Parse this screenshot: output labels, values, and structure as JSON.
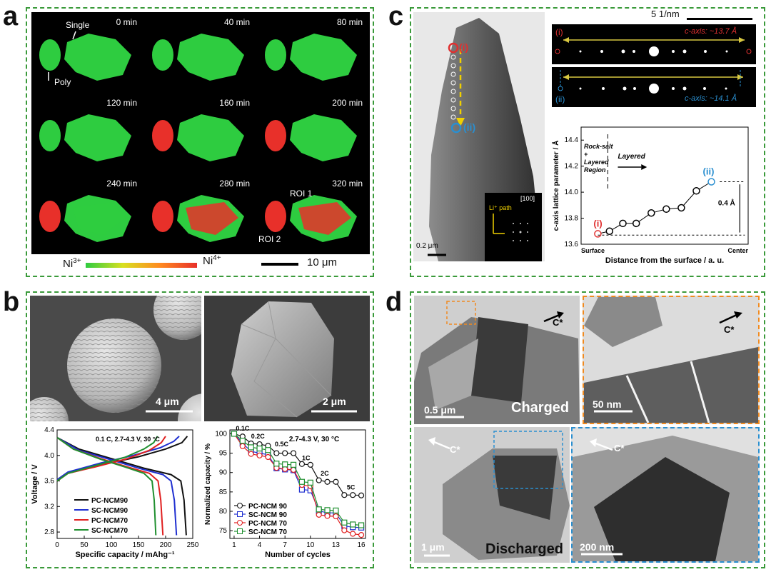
{
  "panels": {
    "a": {
      "letter": "a",
      "times": [
        "0 min",
        "40 min",
        "80 min",
        "120 min",
        "160 min",
        "200 min",
        "240 min",
        "280 min",
        "320 min"
      ],
      "annotations": {
        "single": "Single",
        "poly": "Poly",
        "roi1": "ROI 1",
        "roi2": "ROI 2"
      },
      "colorbar": {
        "left": "Ni",
        "left_sup": "3+",
        "right": "Ni",
        "right_sup": "4+"
      },
      "scalebar": "10 μm",
      "colors": {
        "ni3": "#2ecc40",
        "ni4": "#e8302a",
        "bg": "#000000"
      }
    },
    "b": {
      "letter": "b",
      "sem_scale_left": "4 μm",
      "sem_scale_right": "2 μm"
    },
    "c": {
      "letter": "c",
      "tem_scale": "0.2 μm",
      "markers": {
        "i": "(i)",
        "ii": "(ii)"
      },
      "inset": {
        "path": "Li⁺ path",
        "zone": "[100]"
      },
      "fft_scale": "5 1/nm",
      "fft_rows": [
        {
          "label": "(i)",
          "caxis": "c-axis: ~13.7 Å",
          "color": "#e03030"
        },
        {
          "label": "(ii)",
          "caxis": "c-axis: ~14.1 Å",
          "color": "#2a8fd0"
        }
      ]
    },
    "d": {
      "letter": "d",
      "charged": "Charged",
      "discharged": "Discharged",
      "cstar": "C*",
      "scales": {
        "tl": "0.5 μm",
        "tr": "50 nm",
        "bl": "1 μm",
        "br": "200 nm"
      }
    }
  },
  "chart_data": [
    {
      "type": "line",
      "id": "voltage-profile",
      "title": "0.1 C, 2.7-4.3 V, 30 °C",
      "xlabel": "Specific capacity / mAhg⁻¹",
      "ylabel": "Voltage / V",
      "xlim": [
        0,
        250
      ],
      "ylim": [
        2.7,
        4.4
      ],
      "xticks": [
        0,
        50,
        100,
        150,
        200,
        250
      ],
      "yticks": [
        2.8,
        3.2,
        3.6,
        4.0,
        4.4
      ],
      "series": [
        {
          "name": "PC-NCM90",
          "color": "#111111",
          "charge": [
            [
              0,
              3.6
            ],
            [
              20,
              3.72
            ],
            [
              80,
              3.85
            ],
            [
              150,
              3.98
            ],
            [
              200,
              4.1
            ],
            [
              230,
              4.2
            ],
            [
              240,
              4.3
            ]
          ],
          "discharge": [
            [
              0,
              4.28
            ],
            [
              40,
              4.1
            ],
            [
              100,
              3.95
            ],
            [
              160,
              3.8
            ],
            [
              210,
              3.7
            ],
            [
              228,
              3.6
            ],
            [
              234,
              3.3
            ],
            [
              238,
              2.75
            ]
          ]
        },
        {
          "name": "SC-NCM90",
          "color": "#1f2fd0",
          "charge": [
            [
              0,
              3.62
            ],
            [
              20,
              3.74
            ],
            [
              80,
              3.88
            ],
            [
              140,
              4.0
            ],
            [
              190,
              4.12
            ],
            [
              215,
              4.22
            ],
            [
              225,
              4.3
            ]
          ],
          "discharge": [
            [
              0,
              4.28
            ],
            [
              40,
              4.08
            ],
            [
              100,
              3.93
            ],
            [
              150,
              3.8
            ],
            [
              195,
              3.7
            ],
            [
              210,
              3.6
            ],
            [
              216,
              3.3
            ],
            [
              220,
              2.75
            ]
          ]
        },
        {
          "name": "PC-NCM70",
          "color": "#e02020",
          "charge": [
            [
              0,
              3.6
            ],
            [
              20,
              3.72
            ],
            [
              70,
              3.82
            ],
            [
              130,
              3.95
            ],
            [
              170,
              4.08
            ],
            [
              192,
              4.2
            ],
            [
              200,
              4.3
            ]
          ],
          "discharge": [
            [
              0,
              4.28
            ],
            [
              30,
              4.1
            ],
            [
              80,
              3.95
            ],
            [
              130,
              3.82
            ],
            [
              170,
              3.72
            ],
            [
              186,
              3.6
            ],
            [
              191,
              3.3
            ],
            [
              195,
              2.75
            ]
          ]
        },
        {
          "name": "SC-NCM70",
          "color": "#1f8f2f",
          "charge": [
            [
              0,
              3.6
            ],
            [
              20,
              3.72
            ],
            [
              70,
              3.84
            ],
            [
              125,
              3.97
            ],
            [
              160,
              4.1
            ],
            [
              178,
              4.2
            ],
            [
              185,
              4.3
            ]
          ],
          "discharge": [
            [
              0,
              4.28
            ],
            [
              30,
              4.1
            ],
            [
              80,
              3.94
            ],
            [
              125,
              3.82
            ],
            [
              160,
              3.72
            ],
            [
              175,
              3.6
            ],
            [
              179,
              3.3
            ],
            [
              182,
              2.75
            ]
          ]
        }
      ]
    },
    {
      "type": "line",
      "id": "rate-capability",
      "title": "2.7-4.3 V, 30 °C",
      "xlabel": "Number of cycles",
      "ylabel": "Normalized capacity / %",
      "xlim": [
        0.5,
        16.5
      ],
      "ylim": [
        73,
        101
      ],
      "xticks": [
        1,
        4,
        7,
        10,
        13,
        16
      ],
      "yticks": [
        75,
        80,
        85,
        90,
        95,
        100
      ],
      "rate_labels": [
        {
          "text": "0.1C",
          "x": 1.2,
          "y": 100.8
        },
        {
          "text": "0.2C",
          "x": 3,
          "y": 98.8
        },
        {
          "text": "0.5C",
          "x": 5.8,
          "y": 96.8
        },
        {
          "text": "1C",
          "x": 9,
          "y": 93.2
        },
        {
          "text": "2C",
          "x": 11.2,
          "y": 89.2
        },
        {
          "text": "5C",
          "x": 14.3,
          "y": 85.6
        }
      ],
      "x": [
        1,
        2,
        3,
        4,
        5,
        6,
        7,
        8,
        9,
        10,
        11,
        12,
        13,
        14,
        15,
        16
      ],
      "series": [
        {
          "name": "PC-NCM 90",
          "color": "#111111",
          "marker": "circle",
          "values": [
            100,
            99.3,
            97.5,
            97.3,
            96.9,
            95,
            95,
            95,
            92.2,
            92,
            88,
            87.6,
            87.6,
            84.2,
            84.2,
            84.1
          ]
        },
        {
          "name": "SC-NCM 90",
          "color": "#1f2fd0",
          "marker": "square",
          "values": [
            100,
            97.5,
            95.5,
            95,
            94.6,
            91.1,
            90.8,
            90.6,
            85.6,
            85.4,
            80.1,
            79.6,
            79.6,
            76.2,
            75.9,
            75.8
          ]
        },
        {
          "name": "PC-NCM 70",
          "color": "#e02020",
          "marker": "circle",
          "values": [
            100,
            96.8,
            94.8,
            94.4,
            94,
            91.2,
            90.9,
            90.7,
            86.8,
            86.5,
            79.1,
            78.8,
            78.7,
            75.1,
            74.2,
            73.9
          ]
        },
        {
          "name": "SC-NCM 70",
          "color": "#1f8f2f",
          "marker": "square",
          "values": [
            100,
            98.2,
            96.5,
            96.2,
            95.8,
            92.3,
            92.1,
            92,
            87.6,
            87.4,
            80.5,
            80.3,
            80.2,
            77.1,
            76.6,
            76.4
          ]
        }
      ]
    },
    {
      "type": "line",
      "id": "c-axis-parameter",
      "xlabel": "Distance from the surface / a. u.",
      "ylabel": "c-axis lattice parameter / Å",
      "xlim": [
        0,
        10
      ],
      "ylim": [
        13.6,
        14.5
      ],
      "yticks": [
        13.6,
        13.8,
        14.0,
        14.2,
        14.4
      ],
      "x_endlabels": {
        "left": "Surface",
        "right": "Center"
      },
      "region_left": [
        "Rock-salt",
        "+",
        "Layered",
        "Region"
      ],
      "region_right": "Layered",
      "delta_label": "0.4 Å",
      "point_labels": {
        "first": "(i)",
        "last": "(ii)"
      },
      "x": [
        1,
        1.7,
        2.5,
        3.3,
        4.2,
        5.1,
        6,
        6.9,
        7.8
      ],
      "values": [
        13.68,
        13.7,
        13.76,
        13.76,
        13.84,
        13.87,
        13.88,
        14.01,
        14.08
      ]
    }
  ]
}
